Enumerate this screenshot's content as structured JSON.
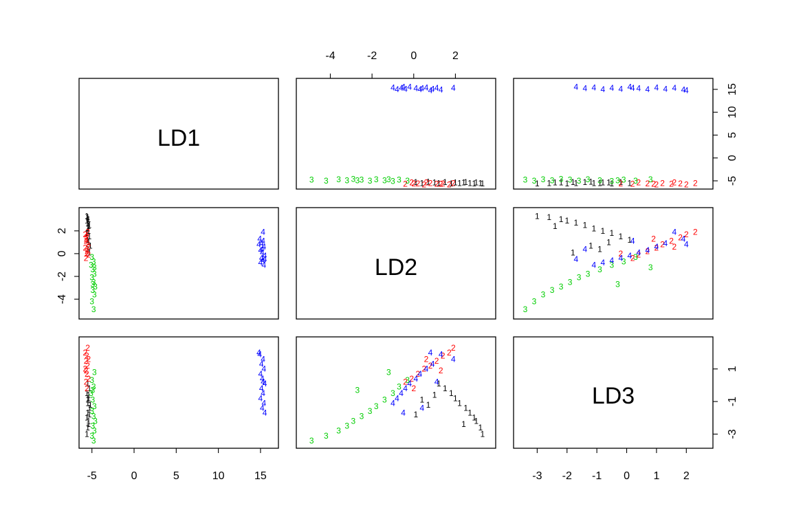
{
  "chart_data": {
    "type": "scatter",
    "variables": [
      "LD1",
      "LD2",
      "LD3"
    ],
    "axes": {
      "LD1": {
        "range": [
          -6.2,
          16.8
        ],
        "ticks": [
          "-5",
          "0",
          "5",
          "10",
          "15"
        ],
        "tick_values": [
          -5,
          0,
          5,
          10,
          15
        ]
      },
      "LD2": {
        "range": [
          -5.5,
          3.8
        ],
        "ticks": [
          "-4",
          "-2",
          "0",
          "2"
        ],
        "tick_values": [
          -4,
          -2,
          0,
          2
        ]
      },
      "LD3": {
        "range": [
          -3.7,
          2.8
        ],
        "ticks": [
          "-3",
          "-2",
          "-1",
          "0",
          "1",
          "2"
        ],
        "tick_values": [
          -3,
          -2,
          -1,
          0,
          1,
          2
        ]
      }
    },
    "right_axis_ticks": {
      "LD1": {
        "ticks": [
          "-5",
          "0",
          "5",
          "10",
          "15"
        ],
        "tick_values": [
          -5,
          0,
          5,
          10,
          15
        ]
      },
      "LD3": {
        "ticks": [
          "-3",
          "-1",
          "1"
        ],
        "tick_values": [
          -3,
          -1,
          1
        ]
      }
    },
    "groups": [
      {
        "name": "1",
        "color": "#000000"
      },
      {
        "name": "2",
        "color": "#ff0000"
      },
      {
        "name": "3",
        "color": "#00cd00"
      },
      {
        "name": "4",
        "color": "#0000ff"
      }
    ],
    "points": [
      {
        "g": "1",
        "ld1": -5.6,
        "ld2": 3.3,
        "ld3": -3.0
      },
      {
        "g": "1",
        "ld1": -5.5,
        "ld2": 3.2,
        "ld3": -2.6
      },
      {
        "g": "1",
        "ld1": -5.4,
        "ld2": 3.0,
        "ld3": -2.2
      },
      {
        "g": "1",
        "ld1": -5.6,
        "ld2": 2.9,
        "ld3": -2.0
      },
      {
        "g": "1",
        "ld1": -5.5,
        "ld2": 2.7,
        "ld3": -1.7
      },
      {
        "g": "1",
        "ld1": -5.3,
        "ld2": 2.5,
        "ld3": -1.4
      },
      {
        "g": "1",
        "ld1": -5.5,
        "ld2": 2.2,
        "ld3": -1.1
      },
      {
        "g": "1",
        "ld1": -5.4,
        "ld2": 2.0,
        "ld3": -0.8
      },
      {
        "g": "1",
        "ld1": -5.6,
        "ld2": 1.8,
        "ld3": -0.5
      },
      {
        "g": "1",
        "ld1": -5.3,
        "ld2": 1.5,
        "ld3": -0.2
      },
      {
        "g": "1",
        "ld1": -5.5,
        "ld2": 1.2,
        "ld3": 0.1
      },
      {
        "g": "1",
        "ld1": -5.4,
        "ld2": 1.0,
        "ld3": -0.6
      },
      {
        "g": "1",
        "ld1": -5.2,
        "ld2": 0.7,
        "ld3": -1.2
      },
      {
        "g": "1",
        "ld1": -5.5,
        "ld2": 0.4,
        "ld3": -0.9
      },
      {
        "g": "1",
        "ld1": -5.3,
        "ld2": 0.1,
        "ld3": -1.8
      },
      {
        "g": "1",
        "ld1": -5.4,
        "ld2": 2.4,
        "ld3": -2.4
      },
      {
        "g": "2",
        "ld1": -5.8,
        "ld2": 1.7,
        "ld3": 2.0
      },
      {
        "g": "2",
        "ld1": -5.6,
        "ld2": 1.4,
        "ld3": 1.8
      },
      {
        "g": "2",
        "ld1": -5.7,
        "ld2": 1.1,
        "ld3": 1.5
      },
      {
        "g": "2",
        "ld1": -5.5,
        "ld2": 0.8,
        "ld3": 1.2
      },
      {
        "g": "2",
        "ld1": -5.8,
        "ld2": 0.5,
        "ld3": 1.0
      },
      {
        "g": "2",
        "ld1": -5.6,
        "ld2": 0.2,
        "ld3": 0.7
      },
      {
        "g": "2",
        "ld1": -5.4,
        "ld2": -0.1,
        "ld3": 0.4
      },
      {
        "g": "2",
        "ld1": -5.7,
        "ld2": -0.4,
        "ld3": 0.2
      },
      {
        "g": "2",
        "ld1": -5.5,
        "ld2": 1.9,
        "ld3": 2.3
      },
      {
        "g": "2",
        "ld1": -5.6,
        "ld2": 0.0,
        "ld3": -0.2
      },
      {
        "g": "2",
        "ld1": -5.4,
        "ld2": 0.6,
        "ld3": 1.6
      },
      {
        "g": "2",
        "ld1": -5.7,
        "ld2": 1.3,
        "ld3": 0.9
      },
      {
        "g": "3",
        "ld1": -5.0,
        "ld2": -0.3,
        "ld3": 0.3
      },
      {
        "g": "3",
        "ld1": -4.8,
        "ld2": -0.7,
        "ld3": -0.1
      },
      {
        "g": "3",
        "ld1": -5.1,
        "ld2": -1.0,
        "ld3": -0.5
      },
      {
        "g": "3",
        "ld1": -4.9,
        "ld2": -1.4,
        "ld3": -0.9
      },
      {
        "g": "3",
        "ld1": -4.7,
        "ld2": -1.8,
        "ld3": -1.3
      },
      {
        "g": "3",
        "ld1": -5.0,
        "ld2": -2.1,
        "ld3": -1.6
      },
      {
        "g": "3",
        "ld1": -4.8,
        "ld2": -2.5,
        "ld3": -1.9
      },
      {
        "g": "3",
        "ld1": -4.6,
        "ld2": -2.9,
        "ld3": -2.2
      },
      {
        "g": "3",
        "ld1": -4.9,
        "ld2": -3.2,
        "ld3": -2.5
      },
      {
        "g": "3",
        "ld1": -4.7,
        "ld2": -3.6,
        "ld3": -2.8
      },
      {
        "g": "3",
        "ld1": -5.0,
        "ld2": -4.2,
        "ld3": -3.1
      },
      {
        "g": "3",
        "ld1": -4.8,
        "ld2": -4.9,
        "ld3": -3.4
      },
      {
        "g": "3",
        "ld1": -4.9,
        "ld2": -2.7,
        "ld3": -0.3
      },
      {
        "g": "3",
        "ld1": -4.7,
        "ld2": -1.2,
        "ld3": 0.8
      },
      {
        "g": "4",
        "ld1": 14.9,
        "ld2": 1.3,
        "ld3": 1.9
      },
      {
        "g": "4",
        "ld1": 15.3,
        "ld2": 1.9,
        "ld3": 1.6
      },
      {
        "g": "4",
        "ld1": 15.1,
        "ld2": 0.9,
        "ld3": 1.3
      },
      {
        "g": "4",
        "ld1": 15.4,
        "ld2": 0.6,
        "ld3": 1.0
      },
      {
        "g": "4",
        "ld1": 15.0,
        "ld2": 0.3,
        "ld3": 0.7
      },
      {
        "g": "4",
        "ld1": 15.2,
        "ld2": 0.1,
        "ld3": 0.4
      },
      {
        "g": "4",
        "ld1": 15.5,
        "ld2": -0.2,
        "ld3": 0.1
      },
      {
        "g": "4",
        "ld1": 15.1,
        "ld2": -0.4,
        "ld3": -0.2
      },
      {
        "g": "4",
        "ld1": 15.3,
        "ld2": -0.6,
        "ld3": -0.5
      },
      {
        "g": "4",
        "ld1": 15.0,
        "ld2": -0.8,
        "ld3": -0.8
      },
      {
        "g": "4",
        "ld1": 15.4,
        "ld2": -1.0,
        "ld3": -1.1
      },
      {
        "g": "4",
        "ld1": 15.2,
        "ld2": 0.4,
        "ld3": -1.4
      },
      {
        "g": "4",
        "ld1": 15.5,
        "ld2": -0.5,
        "ld3": -1.7
      },
      {
        "g": "4",
        "ld1": 14.8,
        "ld2": 0.8,
        "ld3": 2.0
      },
      {
        "g": "4",
        "ld1": 15.3,
        "ld2": 1.1,
        "ld3": 0.2
      }
    ]
  }
}
